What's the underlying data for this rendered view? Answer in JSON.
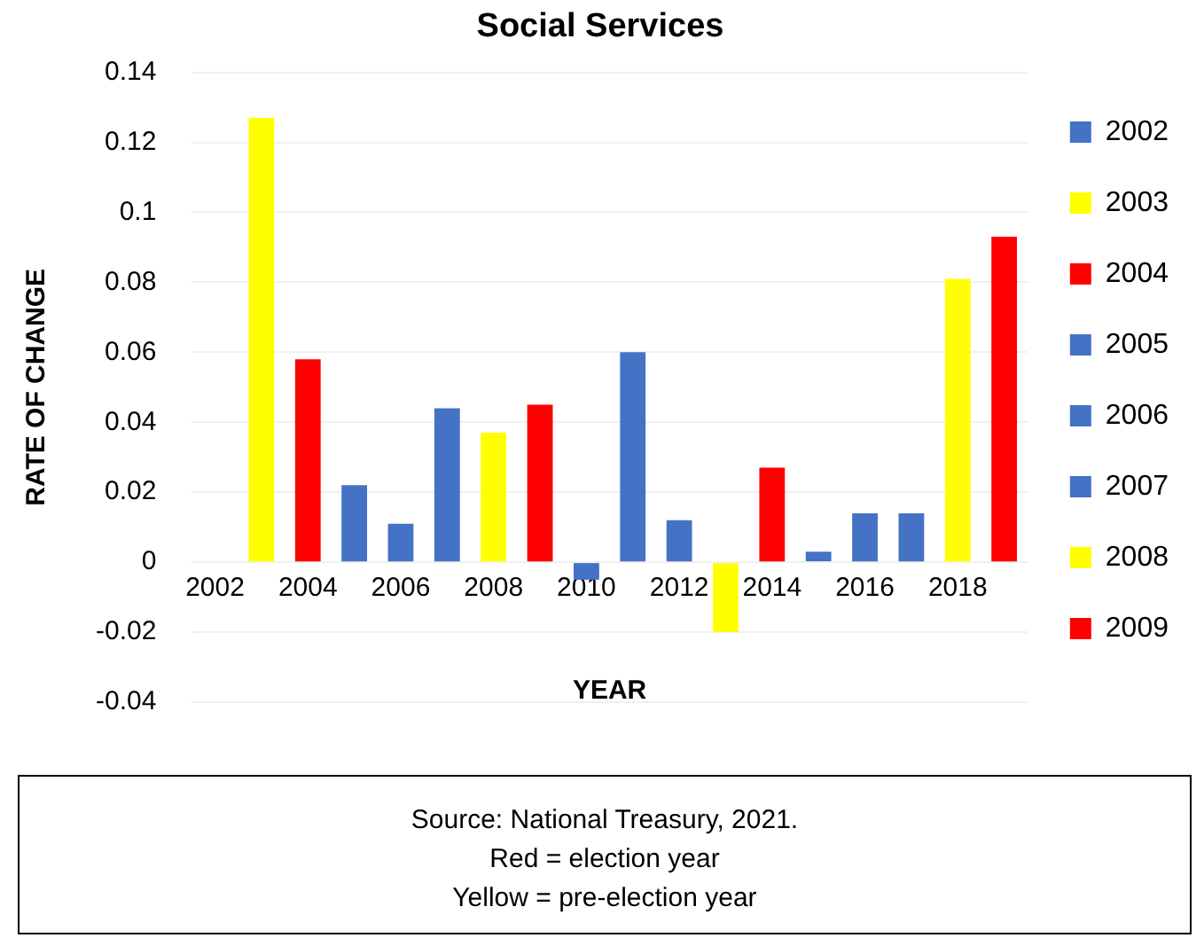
{
  "chart_data": {
    "type": "bar",
    "title": "Social Services",
    "xlabel": "YEAR",
    "ylabel": "RATE OF CHANGE",
    "categories": [
      "2002",
      null,
      "2004",
      null,
      "2006",
      null,
      "2008",
      null,
      "2010",
      null,
      "2012",
      null,
      "2014",
      null,
      "2016",
      null,
      "2018",
      null
    ],
    "series": [
      {
        "name": "2002",
        "color": "#4472c4",
        "values": [
          null,
          null,
          null,
          null,
          null,
          null,
          null,
          null,
          null,
          null,
          null,
          null,
          null,
          null,
          null,
          null,
          null,
          null
        ]
      },
      {
        "name": "2003",
        "color": "#ffff00",
        "values": [
          null,
          0.127,
          null,
          null,
          null,
          null,
          null,
          null,
          null,
          null,
          null,
          null,
          null,
          null,
          null,
          null,
          null,
          null
        ]
      },
      {
        "name": "2004",
        "color": "#ff0000",
        "values": [
          null,
          null,
          0.058,
          null,
          null,
          null,
          null,
          null,
          null,
          null,
          null,
          null,
          null,
          null,
          null,
          null,
          null,
          null
        ]
      },
      {
        "name": "2005",
        "color": "#4472c4",
        "values": [
          null,
          null,
          null,
          0.022,
          null,
          null,
          null,
          null,
          null,
          null,
          null,
          null,
          null,
          null,
          null,
          null,
          null,
          null
        ]
      },
      {
        "name": "2006",
        "color": "#4472c4",
        "values": [
          null,
          null,
          null,
          null,
          0.011,
          null,
          null,
          null,
          null,
          null,
          null,
          null,
          null,
          null,
          null,
          null,
          null,
          null
        ]
      },
      {
        "name": "2007",
        "color": "#4472c4",
        "values": [
          null,
          null,
          null,
          null,
          null,
          0.044,
          null,
          null,
          null,
          null,
          null,
          null,
          null,
          null,
          null,
          null,
          null,
          null
        ]
      },
      {
        "name": "2008",
        "color": "#ffff00",
        "values": [
          null,
          null,
          null,
          null,
          null,
          null,
          0.037,
          null,
          null,
          null,
          null,
          null,
          null,
          null,
          null,
          null,
          null,
          null
        ]
      },
      {
        "name": "2009",
        "color": "#ff0000",
        "values": [
          null,
          null,
          null,
          null,
          null,
          null,
          null,
          0.045,
          null,
          null,
          null,
          null,
          null,
          null,
          null,
          null,
          null,
          null
        ]
      },
      {
        "color": "#4472c4",
        "values": [
          null,
          null,
          null,
          null,
          null,
          null,
          null,
          null,
          -0.005,
          null,
          null,
          null,
          null,
          null,
          null,
          null,
          null,
          null
        ]
      },
      {
        "color": "#4472c4",
        "values": [
          null,
          null,
          null,
          null,
          null,
          null,
          null,
          null,
          null,
          0.06,
          null,
          null,
          null,
          null,
          null,
          null,
          null,
          null
        ]
      },
      {
        "color": "#4472c4",
        "values": [
          null,
          null,
          null,
          null,
          null,
          null,
          null,
          null,
          null,
          null,
          0.012,
          null,
          null,
          null,
          null,
          null,
          null,
          null
        ]
      },
      {
        "color": "#ffff00",
        "values": [
          null,
          null,
          null,
          null,
          null,
          null,
          null,
          null,
          null,
          null,
          null,
          -0.02,
          null,
          null,
          null,
          null,
          null,
          null
        ]
      },
      {
        "color": "#ff0000",
        "values": [
          null,
          null,
          null,
          null,
          null,
          null,
          null,
          null,
          null,
          null,
          null,
          null,
          0.027,
          null,
          null,
          null,
          null,
          null
        ]
      },
      {
        "color": "#4472c4",
        "values": [
          null,
          null,
          null,
          null,
          null,
          null,
          null,
          null,
          null,
          null,
          null,
          null,
          null,
          0.003,
          null,
          null,
          null,
          null
        ]
      },
      {
        "color": "#4472c4",
        "values": [
          null,
          null,
          null,
          null,
          null,
          null,
          null,
          null,
          null,
          null,
          null,
          null,
          null,
          null,
          0.014,
          null,
          null,
          null
        ]
      },
      {
        "color": "#4472c4",
        "values": [
          null,
          null,
          null,
          null,
          null,
          null,
          null,
          null,
          null,
          null,
          null,
          null,
          null,
          null,
          null,
          0.014,
          null,
          null
        ]
      },
      {
        "color": "#ffff00",
        "values": [
          null,
          null,
          null,
          null,
          null,
          null,
          null,
          null,
          null,
          null,
          null,
          null,
          null,
          null,
          null,
          null,
          0.081,
          null
        ]
      },
      {
        "color": "#ff0000",
        "values": [
          null,
          null,
          null,
          null,
          null,
          null,
          null,
          null,
          null,
          null,
          null,
          null,
          null,
          null,
          null,
          null,
          null,
          0.093
        ]
      }
    ],
    "ylim": [
      -0.04,
      0.14
    ],
    "yticks": [
      -0.04,
      -0.02,
      0,
      0.02,
      0.04,
      0.06,
      0.08,
      0.1,
      0.12,
      0.14
    ],
    "grid": "y",
    "legend": "right",
    "annotations": [
      "Source: National Treasury, 2021.",
      "Red = election year",
      "Yellow = pre-election year"
    ]
  }
}
